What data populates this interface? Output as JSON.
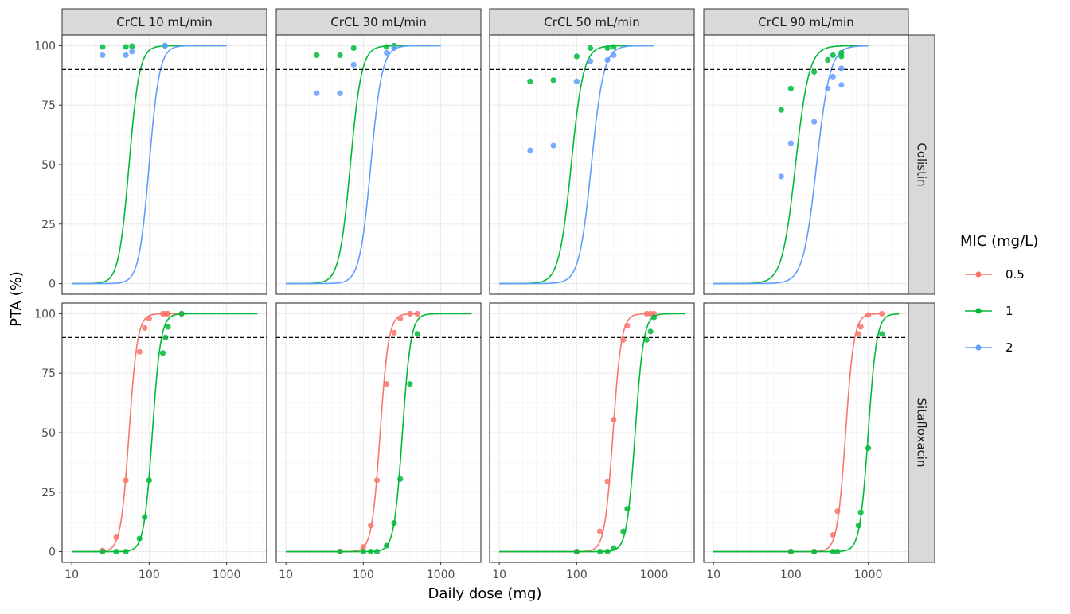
{
  "chart_data": {
    "type": "line",
    "xlabel": "Daily dose (mg)",
    "ylabel": "PTA (%)",
    "x_scale": "log10",
    "xlim": [
      7.5,
      3300
    ],
    "ylim": [
      -4.5,
      104.5
    ],
    "x_ticks": [
      10,
      100,
      1000
    ],
    "y_ticks": [
      0,
      25,
      50,
      75,
      100
    ],
    "grid": true,
    "reference_line": {
      "y": 90,
      "style": "dashed"
    },
    "legend": {
      "title": "MIC (mg/L)",
      "position": "right",
      "entries": [
        {
          "label": "0.5",
          "color": "#F8766D"
        },
        {
          "label": "1",
          "color": "#00BA38"
        },
        {
          "label": "2",
          "color": "#619CFF"
        }
      ]
    },
    "facet_columns": [
      "CrCL 10 mL/min",
      "CrCL 30 mL/min",
      "CrCL 50 mL/min",
      "CrCL 90 mL/min"
    ],
    "facet_rows": [
      "Colistin",
      "Sitafloxacin"
    ],
    "panels": [
      {
        "col": 0,
        "row": 0,
        "curves": [
          {
            "mic": "1",
            "color": "#00BA38",
            "x_range": [
              10,
              1000
            ],
            "ec50": 55,
            "hill": 6.5
          },
          {
            "mic": "2",
            "color": "#619CFF",
            "x_range": [
              10,
              1000
            ],
            "ec50": 100,
            "hill": 6.5
          }
        ],
        "points": [
          {
            "mic": "1",
            "color": "#00BA38",
            "x": [
              25,
              50,
              60,
              160
            ],
            "y": [
              99.5,
              99.5,
              99.8,
              100
            ]
          },
          {
            "mic": "2",
            "color": "#619CFF",
            "x": [
              25,
              50,
              60,
              160
            ],
            "y": [
              96,
              96,
              97.5,
              100
            ]
          }
        ]
      },
      {
        "col": 1,
        "row": 0,
        "curves": [
          {
            "mic": "1",
            "color": "#00BA38",
            "x_range": [
              10,
              1000
            ],
            "ec50": 68,
            "hill": 6
          },
          {
            "mic": "2",
            "color": "#619CFF",
            "x_range": [
              10,
              1000
            ],
            "ec50": 125,
            "hill": 6
          }
        ],
        "points": [
          {
            "mic": "1",
            "color": "#00BA38",
            "x": [
              25,
              50,
              75,
              200,
              250
            ],
            "y": [
              96,
              96,
              99,
              99.5,
              100
            ]
          },
          {
            "mic": "2",
            "color": "#619CFF",
            "x": [
              25,
              50,
              75,
              200,
              250
            ],
            "y": [
              80,
              80,
              92,
              97,
              99
            ]
          }
        ]
      },
      {
        "col": 2,
        "row": 0,
        "curves": [
          {
            "mic": "1",
            "color": "#00BA38",
            "x_range": [
              10,
              1000
            ],
            "ec50": 85,
            "hill": 5.5
          },
          {
            "mic": "2",
            "color": "#619CFF",
            "x_range": [
              10,
              1000
            ],
            "ec50": 155,
            "hill": 5.5
          }
        ],
        "points": [
          {
            "mic": "1",
            "color": "#00BA38",
            "x": [
              25,
              50,
              100,
              150,
              250,
              300
            ],
            "y": [
              85,
              85.5,
              95.5,
              99,
              99,
              99.5
            ]
          },
          {
            "mic": "2",
            "color": "#619CFF",
            "x": [
              25,
              50,
              100,
              150,
              250,
              300
            ],
            "y": [
              56,
              58,
              85,
              93.5,
              94,
              96
            ]
          }
        ]
      },
      {
        "col": 3,
        "row": 0,
        "curves": [
          {
            "mic": "1",
            "color": "#00BA38",
            "x_range": [
              10,
              1000
            ],
            "ec50": 115,
            "hill": 5
          },
          {
            "mic": "2",
            "color": "#619CFF",
            "x_range": [
              10,
              1000
            ],
            "ec50": 215,
            "hill": 5
          }
        ],
        "points": [
          {
            "mic": "1",
            "color": "#00BA38",
            "x": [
              75,
              100,
              200,
              300,
              350,
              450,
              450
            ],
            "y": [
              73,
              82,
              89,
              94,
              96,
              97,
              95.5
            ]
          },
          {
            "mic": "2",
            "color": "#619CFF",
            "x": [
              75,
              100,
              200,
              300,
              350,
              450,
              450
            ],
            "y": [
              45,
              59,
              68,
              82,
              87,
              90.5,
              83.5
            ]
          }
        ]
      },
      {
        "col": 0,
        "row": 1,
        "curves": [
          {
            "mic": "0.5",
            "color": "#F8766D",
            "x_range": [
              10,
              300
            ],
            "ec50": 55,
            "hill": 8
          },
          {
            "mic": "1",
            "color": "#00BA38",
            "x_range": [
              10,
              2500
            ],
            "ec50": 110,
            "hill": 8
          }
        ],
        "points": [
          {
            "mic": "0.5",
            "color": "#F8766D",
            "x": [
              25,
              37.5,
              50,
              75,
              87.5,
              100,
              150,
              162.5,
              175,
              262.5
            ],
            "y": [
              0.5,
              6,
              30,
              84,
              94,
              98,
              100,
              100,
              100,
              100
            ]
          },
          {
            "mic": "1",
            "color": "#00BA38",
            "x": [
              25,
              37.5,
              50,
              75,
              87.5,
              100,
              150,
              162.5,
              175,
              262.5
            ],
            "y": [
              0,
              0,
              0,
              5.5,
              14.5,
              30,
              83.5,
              90,
              94.5,
              100
            ]
          }
        ]
      },
      {
        "col": 1,
        "row": 1,
        "curves": [
          {
            "mic": "0.5",
            "color": "#F8766D",
            "x_range": [
              10,
              500
            ],
            "ec50": 165,
            "hill": 8
          },
          {
            "mic": "1",
            "color": "#00BA38",
            "x_range": [
              10,
              2500
            ],
            "ec50": 320,
            "hill": 8
          }
        ],
        "points": [
          {
            "mic": "0.5",
            "color": "#F8766D",
            "x": [
              50,
              100,
              125,
              150,
              200,
              250,
              300,
              400,
              500
            ],
            "y": [
              0,
              2,
              11,
              30,
              70.5,
              92,
              98,
              100,
              100
            ]
          },
          {
            "mic": "1",
            "color": "#00BA38",
            "x": [
              50,
              100,
              125,
              150,
              200,
              250,
              300,
              400,
              500
            ],
            "y": [
              0,
              0,
              0,
              0,
              2.5,
              12,
              30.5,
              70.5,
              91.5
            ]
          }
        ]
      },
      {
        "col": 2,
        "row": 1,
        "curves": [
          {
            "mic": "0.5",
            "color": "#F8766D",
            "x_range": [
              10,
              1000
            ],
            "ec50": 295,
            "hill": 8
          },
          {
            "mic": "1",
            "color": "#00BA38",
            "x_range": [
              10,
              2500
            ],
            "ec50": 570,
            "hill": 8
          }
        ],
        "points": [
          {
            "mic": "0.5",
            "color": "#F8766D",
            "x": [
              100,
              200,
              250,
              300,
              400,
              450,
              800,
              900,
              1000
            ],
            "y": [
              0,
              8.5,
              29.5,
              55.5,
              89,
              95,
              100,
              100,
              100
            ]
          },
          {
            "mic": "1",
            "color": "#00BA38",
            "x": [
              100,
              200,
              250,
              300,
              400,
              450,
              800,
              900,
              1000
            ],
            "y": [
              0,
              0,
              0,
              1.5,
              8.5,
              18,
              89,
              92.5,
              98.5
            ]
          }
        ]
      },
      {
        "col": 3,
        "row": 1,
        "curves": [
          {
            "mic": "0.5",
            "color": "#F8766D",
            "x_range": [
              10,
              1500
            ],
            "ec50": 510,
            "hill": 8
          },
          {
            "mic": "1",
            "color": "#00BA38",
            "x_range": [
              10,
              2500
            ],
            "ec50": 1000,
            "hill": 8
          }
        ],
        "points": [
          {
            "mic": "0.5",
            "color": "#F8766D",
            "x": [
              100,
              200,
              350,
              400,
              750,
              800,
              1000,
              1500
            ],
            "y": [
              0,
              0,
              7,
              17,
              91.5,
              94.5,
              99.5,
              100
            ]
          },
          {
            "mic": "1",
            "color": "#00BA38",
            "x": [
              100,
              200,
              350,
              400,
              750,
              800,
              1000,
              1500
            ],
            "y": [
              0,
              0,
              0,
              0,
              11,
              16.5,
              43.5,
              91.5
            ]
          }
        ]
      }
    ]
  }
}
